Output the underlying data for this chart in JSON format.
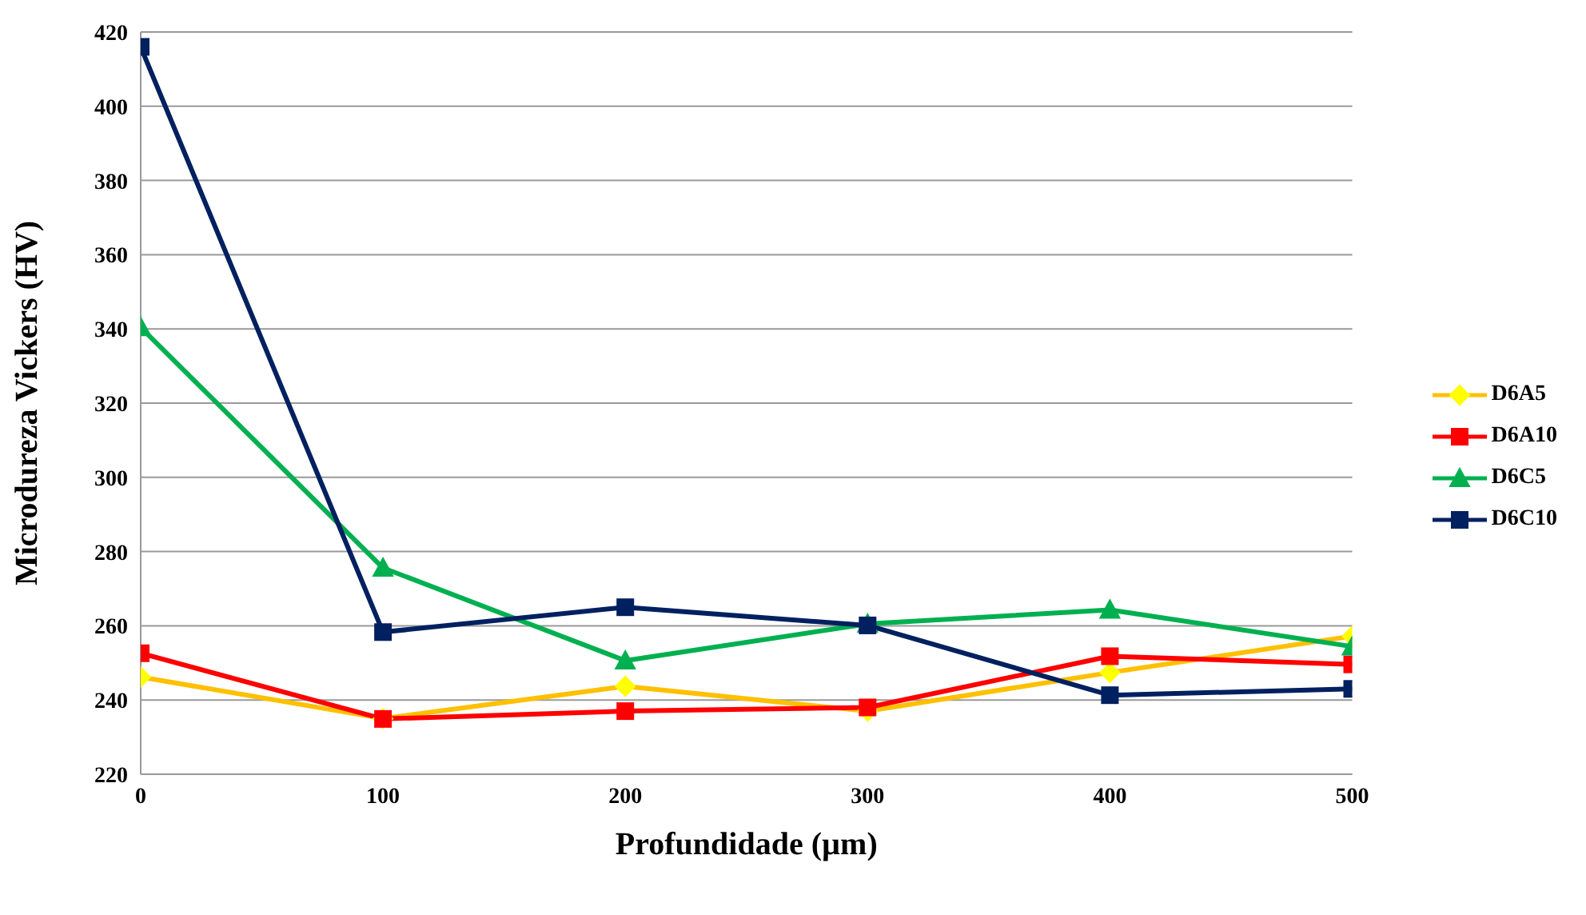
{
  "chart_data": {
    "type": "line",
    "xlabel": "Profundidade (µm)",
    "ylabel": "Microdureza Vickers (HV)",
    "x": [
      0,
      100,
      200,
      300,
      400,
      500
    ],
    "series": [
      {
        "name": "D6A5",
        "color": "#ffc000",
        "marker": "diamond",
        "values": [
          246.2,
          235,
          243.7,
          237,
          247.4,
          257.2
        ]
      },
      {
        "name": "D6A10",
        "color": "#ff0000",
        "marker": "square",
        "values": [
          252.6,
          234.9,
          237,
          238,
          251.8,
          249.6
        ]
      },
      {
        "name": "D6C5",
        "color": "#00b050",
        "marker": "triangle",
        "values": [
          340.4,
          275.6,
          250.6,
          260.5,
          264.3,
          254.4
        ]
      },
      {
        "name": "D6C10",
        "color": "#002060",
        "marker": "square",
        "values": [
          416,
          258.3,
          265,
          260.1,
          241.3,
          243
        ]
      }
    ],
    "xlim": [
      0,
      500
    ],
    "xticks": [
      0,
      100,
      200,
      300,
      400,
      500
    ],
    "ylim": [
      220,
      420
    ],
    "yticks": [
      220,
      240,
      260,
      280,
      300,
      320,
      340,
      360,
      380,
      400,
      420
    ],
    "grid": "y",
    "legend": "right",
    "line_style": "solid"
  }
}
